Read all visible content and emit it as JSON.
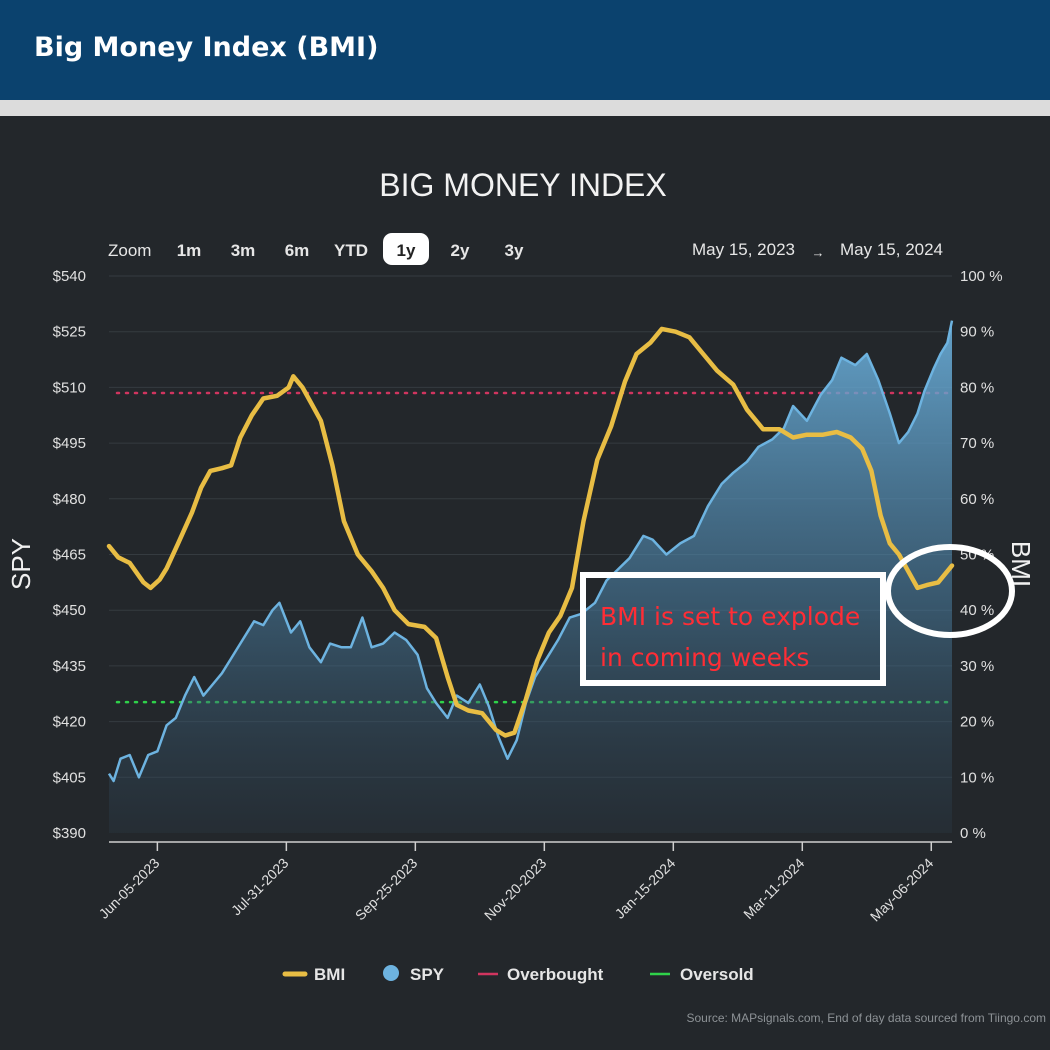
{
  "header": {
    "title": "Big Money Index (BMI)"
  },
  "colors": {
    "banner": "#0b426e",
    "panel": "#23272b",
    "bmi": "#e8bd44",
    "spy": "#6db3e0",
    "overbought": "#d0355f",
    "oversold": "#2fd24a",
    "annotation": "#ff2d35"
  },
  "controls": {
    "zoom_label": "Zoom",
    "buttons": [
      "1m",
      "3m",
      "6m",
      "YTD",
      "1y",
      "2y",
      "3y"
    ],
    "selected": "1y",
    "range_from": "May 15, 2023",
    "range_arrow": "→",
    "range_to": "May 15, 2024"
  },
  "annotation": {
    "line1": "BMI is set to explode",
    "line2": "in coming weeks"
  },
  "source_text": "Source: MAPsignals.com, End of day data sourced from Tiingo.com",
  "chart_data": {
    "type": "line",
    "title": "BIG MONEY INDEX",
    "left_axis": {
      "label": "SPY",
      "range": [
        390,
        540
      ],
      "ticks": [
        "$540",
        "$525",
        "$510",
        "$495",
        "$480",
        "$465",
        "$450",
        "$435",
        "$420",
        "$405",
        "$390"
      ]
    },
    "right_axis": {
      "label": "BMI",
      "range": [
        0,
        100
      ],
      "ticks": [
        "100 %",
        "90 %",
        "80 %",
        "70 %",
        "60 %",
        "50 %",
        "40 %",
        "30 %",
        "20 %",
        "10 %",
        "0 %"
      ]
    },
    "x_axis": {
      "range": [
        "2023-05-15",
        "2024-05-15"
      ],
      "tick_labels": [
        "Jun-05-2023",
        "Jul-31-2023",
        "Sep-25-2023",
        "Nov-20-2023",
        "Jan-15-2024",
        "Mar-11-2024",
        "May-06-2024"
      ],
      "tick_dates": [
        "2023-06-05",
        "2023-07-31",
        "2023-09-25",
        "2023-11-20",
        "2024-01-15",
        "2024-03-11",
        "2024-05-06"
      ]
    },
    "grid": true,
    "legend_position": "bottom-center",
    "reference_lines": [
      {
        "name": "Overbought",
        "axis": "right",
        "value": 79
      },
      {
        "name": "Oversold",
        "axis": "right",
        "value": 23.5
      }
    ],
    "series": [
      {
        "name": "BMI",
        "axis": "right",
        "style": "line",
        "points": [
          [
            "2023-05-15",
            51.5
          ],
          [
            "2023-05-19",
            49.5
          ],
          [
            "2023-05-24",
            48.5
          ],
          [
            "2023-05-30",
            45
          ],
          [
            "2023-06-02",
            44
          ],
          [
            "2023-06-06",
            45.5
          ],
          [
            "2023-06-09",
            47.5
          ],
          [
            "2023-06-14",
            52
          ],
          [
            "2023-06-20",
            57.5
          ],
          [
            "2023-06-24",
            62
          ],
          [
            "2023-06-28",
            65
          ],
          [
            "2023-07-03",
            65.5
          ],
          [
            "2023-07-07",
            66
          ],
          [
            "2023-07-11",
            71
          ],
          [
            "2023-07-16",
            75
          ],
          [
            "2023-07-21",
            78
          ],
          [
            "2023-07-27",
            78.5
          ],
          [
            "2023-08-01",
            80
          ],
          [
            "2023-08-03",
            82
          ],
          [
            "2023-08-07",
            80
          ],
          [
            "2023-08-11",
            77
          ],
          [
            "2023-08-15",
            74
          ],
          [
            "2023-08-20",
            66
          ],
          [
            "2023-08-25",
            56
          ],
          [
            "2023-08-31",
            50
          ],
          [
            "2023-09-06",
            47
          ],
          [
            "2023-09-11",
            44
          ],
          [
            "2023-09-16",
            40
          ],
          [
            "2023-09-22",
            37.5
          ],
          [
            "2023-09-29",
            37
          ],
          [
            "2023-10-04",
            35
          ],
          [
            "2023-10-09",
            28
          ],
          [
            "2023-10-13",
            23
          ],
          [
            "2023-10-18",
            22
          ],
          [
            "2023-10-24",
            21.5
          ],
          [
            "2023-10-30",
            18.5
          ],
          [
            "2023-11-03",
            17.5
          ],
          [
            "2023-11-07",
            18
          ],
          [
            "2023-11-12",
            24
          ],
          [
            "2023-11-17",
            31
          ],
          [
            "2023-11-22",
            36
          ],
          [
            "2023-11-27",
            39
          ],
          [
            "2023-12-02",
            44
          ],
          [
            "2023-12-07",
            56
          ],
          [
            "2023-12-13",
            67
          ],
          [
            "2023-12-19",
            73
          ],
          [
            "2023-12-25",
            81
          ],
          [
            "2023-12-30",
            86
          ],
          [
            "2024-01-05",
            88
          ],
          [
            "2024-01-10",
            90.5
          ],
          [
            "2024-01-16",
            90
          ],
          [
            "2024-01-22",
            89
          ],
          [
            "2024-01-28",
            86
          ],
          [
            "2024-02-03",
            83
          ],
          [
            "2024-02-10",
            80.5
          ],
          [
            "2024-02-16",
            76
          ],
          [
            "2024-02-23",
            72.5
          ],
          [
            "2024-03-01",
            72.5
          ],
          [
            "2024-03-07",
            71
          ],
          [
            "2024-03-13",
            71.5
          ],
          [
            "2024-03-20",
            71.5
          ],
          [
            "2024-03-26",
            72
          ],
          [
            "2024-04-01",
            71
          ],
          [
            "2024-04-06",
            69
          ],
          [
            "2024-04-10",
            65
          ],
          [
            "2024-04-14",
            57
          ],
          [
            "2024-04-18",
            52
          ],
          [
            "2024-04-22",
            50
          ],
          [
            "2024-04-26",
            47
          ],
          [
            "2024-04-30",
            44
          ],
          [
            "2024-05-04",
            44.5
          ],
          [
            "2024-05-09",
            45
          ],
          [
            "2024-05-13",
            47
          ],
          [
            "2024-05-15",
            48
          ]
        ]
      },
      {
        "name": "SPY",
        "axis": "left",
        "style": "area",
        "points": [
          [
            "2023-05-15",
            406
          ],
          [
            "2023-05-17",
            404
          ],
          [
            "2023-05-20",
            410
          ],
          [
            "2023-05-24",
            411
          ],
          [
            "2023-05-28",
            405
          ],
          [
            "2023-06-01",
            411
          ],
          [
            "2023-06-05",
            412
          ],
          [
            "2023-06-09",
            419
          ],
          [
            "2023-06-13",
            421
          ],
          [
            "2023-06-17",
            427
          ],
          [
            "2023-06-21",
            432
          ],
          [
            "2023-06-25",
            427
          ],
          [
            "2023-06-29",
            430
          ],
          [
            "2023-07-03",
            433
          ],
          [
            "2023-07-07",
            437
          ],
          [
            "2023-07-12",
            442
          ],
          [
            "2023-07-17",
            447
          ],
          [
            "2023-07-21",
            446
          ],
          [
            "2023-07-25",
            450
          ],
          [
            "2023-07-28",
            452
          ],
          [
            "2023-08-02",
            444
          ],
          [
            "2023-08-06",
            447
          ],
          [
            "2023-08-10",
            440
          ],
          [
            "2023-08-15",
            436
          ],
          [
            "2023-08-19",
            441
          ],
          [
            "2023-08-24",
            440
          ],
          [
            "2023-08-28",
            440
          ],
          [
            "2023-09-02",
            448
          ],
          [
            "2023-09-06",
            440
          ],
          [
            "2023-09-11",
            441
          ],
          [
            "2023-09-16",
            444
          ],
          [
            "2023-09-21",
            442
          ],
          [
            "2023-09-26",
            438
          ],
          [
            "2023-09-30",
            429
          ],
          [
            "2023-10-04",
            425
          ],
          [
            "2023-10-09",
            421
          ],
          [
            "2023-10-13",
            427
          ],
          [
            "2023-10-18",
            425
          ],
          [
            "2023-10-23",
            430
          ],
          [
            "2023-10-27",
            424
          ],
          [
            "2023-10-31",
            416
          ],
          [
            "2023-11-04",
            410
          ],
          [
            "2023-11-08",
            415
          ],
          [
            "2023-11-12",
            425
          ],
          [
            "2023-11-16",
            432
          ],
          [
            "2023-11-20",
            436
          ],
          [
            "2023-11-26",
            442
          ],
          [
            "2023-12-01",
            448
          ],
          [
            "2023-12-06",
            449
          ],
          [
            "2023-12-12",
            452
          ],
          [
            "2023-12-17",
            458
          ],
          [
            "2023-12-22",
            461
          ],
          [
            "2023-12-27",
            464
          ],
          [
            "2024-01-02",
            470
          ],
          [
            "2024-01-06",
            469
          ],
          [
            "2024-01-12",
            465
          ],
          [
            "2024-01-18",
            468
          ],
          [
            "2024-01-24",
            470
          ],
          [
            "2024-01-30",
            478
          ],
          [
            "2024-02-05",
            484
          ],
          [
            "2024-02-10",
            487
          ],
          [
            "2024-02-16",
            490
          ],
          [
            "2024-02-21",
            494
          ],
          [
            "2024-02-27",
            496
          ],
          [
            "2024-03-03",
            499
          ],
          [
            "2024-03-07",
            505
          ],
          [
            "2024-03-13",
            501
          ],
          [
            "2024-03-19",
            508
          ],
          [
            "2024-03-24",
            512
          ],
          [
            "2024-03-28",
            518
          ],
          [
            "2024-04-03",
            516
          ],
          [
            "2024-04-08",
            519
          ],
          [
            "2024-04-13",
            512
          ],
          [
            "2024-04-18",
            503
          ],
          [
            "2024-04-22",
            495
          ],
          [
            "2024-04-26",
            498
          ],
          [
            "2024-04-30",
            503
          ],
          [
            "2024-05-03",
            509
          ],
          [
            "2024-05-07",
            515
          ],
          [
            "2024-05-10",
            519
          ],
          [
            "2024-05-13",
            522
          ],
          [
            "2024-05-15",
            528
          ]
        ]
      }
    ]
  }
}
